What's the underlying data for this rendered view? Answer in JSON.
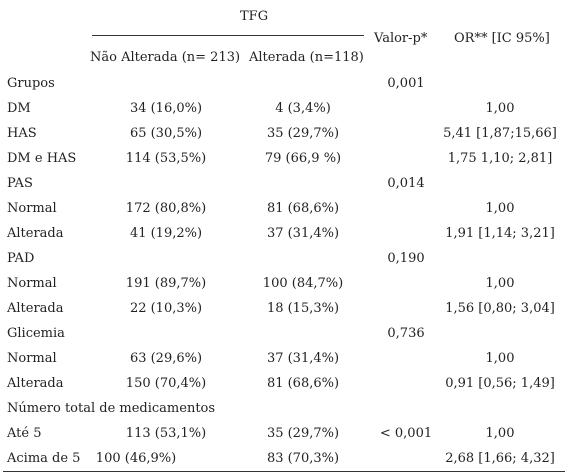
{
  "header": {
    "tfg": "TFG",
    "col_nao_alterada": "Não Alterada (n= 213)",
    "col_alterada": "Alterada (n=118)",
    "col_valor_p": "Valor-p*",
    "col_or": "OR** [IC 95%]"
  },
  "rows": [
    {
      "label": "Grupos",
      "nao": "",
      "alt": "",
      "p": "0,001",
      "or": ""
    },
    {
      "label": "DM",
      "nao": "34 (16,0%)",
      "alt": "4 (3,4%)",
      "p": "",
      "or": "1,00"
    },
    {
      "label": "HAS",
      "nao": "65 (30,5%)",
      "alt": "35 (29,7%)",
      "p": "",
      "or": "5,41 [1,87;15,66]"
    },
    {
      "label": "DM e HAS",
      "nao": "114 (53,5%)",
      "alt": "79 (66,9 %)",
      "p": "",
      "or": "1,75 1,10; 2,81]"
    },
    {
      "label": "PAS",
      "nao": "",
      "alt": "",
      "p": "0,014",
      "or": ""
    },
    {
      "label": "Normal",
      "nao": "172 (80,8%)",
      "alt": "81 (68,6%)",
      "p": "",
      "or": "1,00"
    },
    {
      "label": "Alterada",
      "nao": "41 (19,2%)",
      "alt": "37 (31,4%)",
      "p": "",
      "or": "1,91 [1,14; 3,21]"
    },
    {
      "label": "PAD",
      "nao": "",
      "alt": "",
      "p": "0,190",
      "or": ""
    },
    {
      "label": "Normal",
      "nao": "191 (89,7%)",
      "alt": "100 (84,7%)",
      "p": "",
      "or": "1,00"
    },
    {
      "label": "Alterada",
      "nao": "22 (10,3%)",
      "alt": "18 (15,3%)",
      "p": "",
      "or": "1,56 [0,80; 3,04]"
    },
    {
      "label": "Glicemia",
      "nao": "",
      "alt": "",
      "p": "0,736",
      "or": ""
    },
    {
      "label": "Normal",
      "nao": "63 (29,6%)",
      "alt": "37 (31,4%)",
      "p": "",
      "or": "1,00"
    },
    {
      "label": "Alterada",
      "nao": "150 (70,4%)",
      "alt": "81 (68,6%)",
      "p": "",
      "or": "0,91 [0,56; 1,49]"
    },
    {
      "label": "Número total de medicamentos",
      "nao": "",
      "alt": "",
      "p": "",
      "or": ""
    },
    {
      "label": "Até 5",
      "nao": "113 (53,1%)",
      "alt": "35 (29,7%)",
      "p": "< 0,001",
      "or": "1,00"
    },
    {
      "label": "Acima de 5",
      "nao": "100 (46,9%)",
      "alt": "83 (70,3%)",
      "p": "",
      "or": "2,68 [1,66; 4,32]"
    }
  ]
}
